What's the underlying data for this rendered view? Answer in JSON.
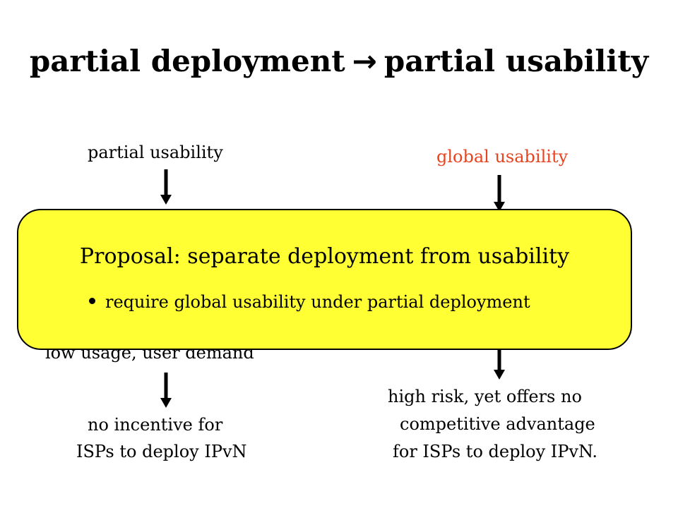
{
  "title": {
    "left": "partial deployment",
    "arrow": "→",
    "right": "partial usability"
  },
  "left_column": {
    "top_label": "partial usability",
    "hidden_label": "low usage, user demand",
    "bottom_line1": "no incentive for",
    "bottom_line2": "ISPs to deploy IPvN"
  },
  "right_column": {
    "top_label": "global usability",
    "bottom_line1": "high risk, yet offers no",
    "bottom_line2": "competitive advantage",
    "bottom_line3": "for ISPs to deploy IPvN."
  },
  "callout": {
    "title": "Proposal: separate deployment from usability",
    "bullet": "require global usability under partial deployment"
  },
  "colors": {
    "highlight": "#ffff33",
    "accent_red": "#e8431e"
  }
}
